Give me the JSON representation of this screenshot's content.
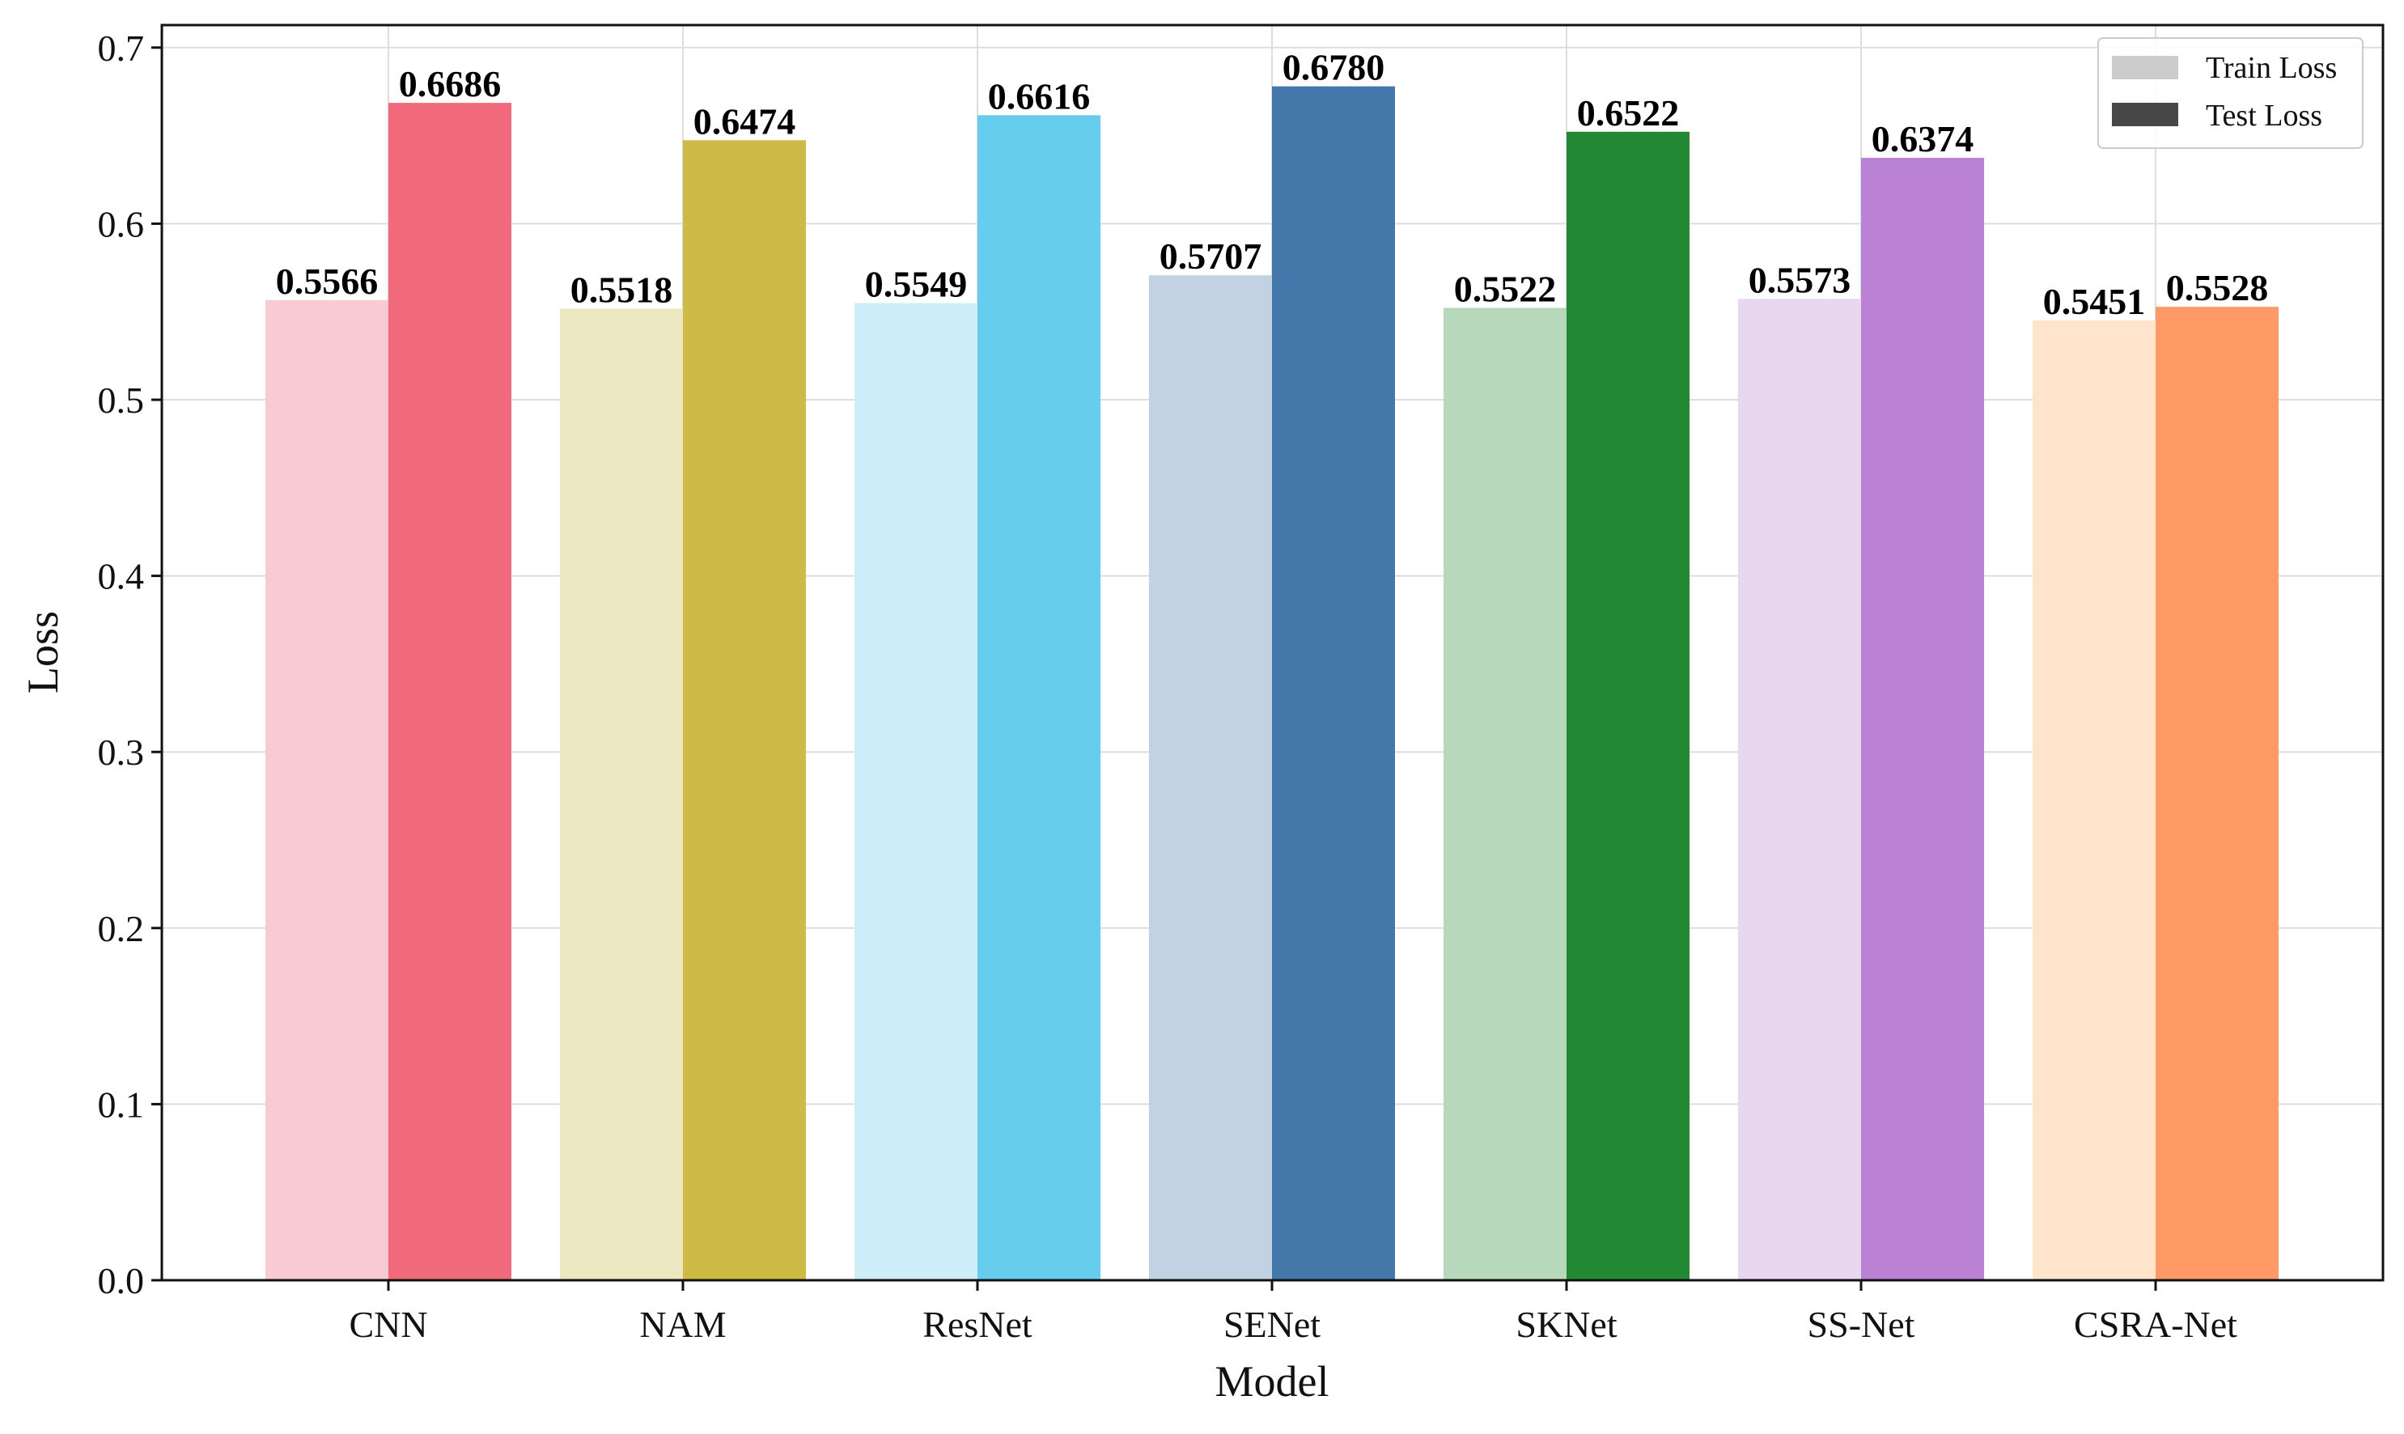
{
  "chart_data": {
    "type": "bar",
    "title": "",
    "xlabel": "Model",
    "ylabel": "Loss",
    "ylim": [
      0,
      0.7
    ],
    "yticks": [
      "0.0",
      "0.1",
      "0.2",
      "0.3",
      "0.4",
      "0.5",
      "0.6",
      "0.7"
    ],
    "grid": true,
    "legend_location": "top-right",
    "categories": [
      "CNN",
      "NAM",
      "ResNet",
      "SENet",
      "SKNet",
      "SS-Net",
      "CSRA-Net"
    ],
    "series": [
      {
        "name": "Train Loss",
        "legend_color": "#cccccc",
        "values": [
          0.5566,
          0.5518,
          0.5549,
          0.5707,
          0.5522,
          0.5573,
          0.5451
        ],
        "labels": [
          "0.5566",
          "0.5518",
          "0.5549",
          "0.5707",
          "0.5522",
          "0.5573",
          "0.5451"
        ],
        "colors": [
          "#f8cad2",
          "#ece7c0",
          "#cdedf8",
          "#c2d2e2",
          "#b8d8bc",
          "#e8d7ef",
          "#fde4cb"
        ]
      },
      {
        "name": "Test Loss",
        "legend_color": "#474747",
        "values": [
          0.6686,
          0.6474,
          0.6616,
          0.678,
          0.6522,
          0.6374,
          0.5528
        ],
        "labels": [
          "0.6686",
          "0.6474",
          "0.6616",
          "0.6780",
          "0.6522",
          "0.6374",
          "0.5528"
        ],
        "colors": [
          "#f06a7c",
          "#cdbb46",
          "#67cdee",
          "#4477aa",
          "#228833",
          "#bb81d5",
          "#ff9a67"
        ]
      }
    ]
  }
}
